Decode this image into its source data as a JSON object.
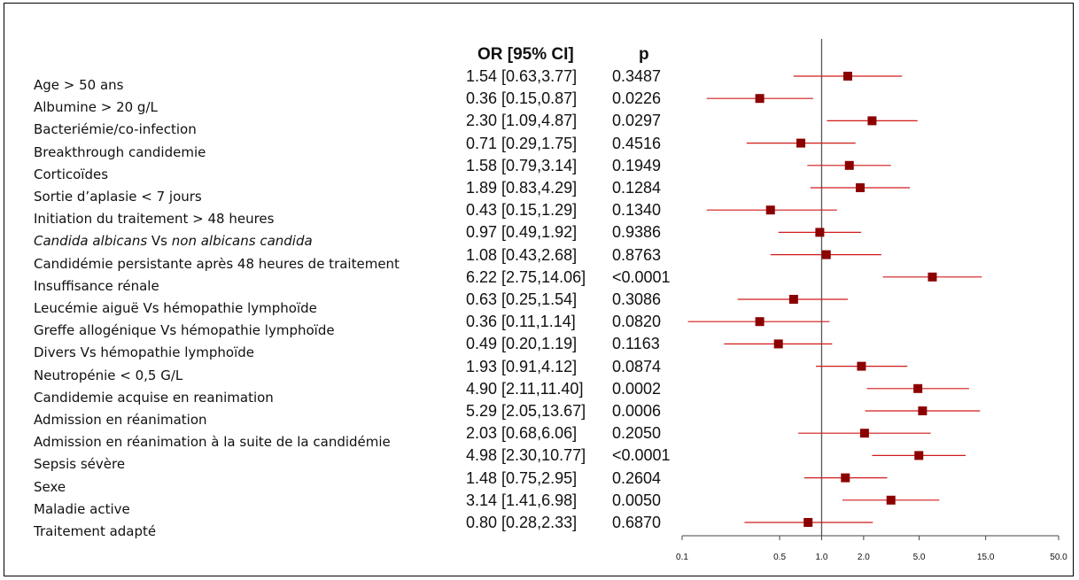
{
  "header": {
    "or_label": "OR [95% CI]",
    "p_label": "p"
  },
  "chart_data": {
    "type": "forest",
    "title": "",
    "x_scale": "log",
    "xlim": [
      0.1,
      50.0
    ],
    "x_ticks": [
      0.1,
      0.5,
      1.0,
      2.0,
      5.0,
      15.0,
      50.0
    ],
    "x_tick_labels": [
      "0.1",
      "0.5",
      "1.0",
      "2.0",
      "5.0",
      "15.0",
      "50.0"
    ],
    "reference_line": 1.0,
    "marker_color": "#8b0000",
    "line_color": "#d21a1a",
    "rows": [
      {
        "label": "Age > 50 ans",
        "or_text": "1.54 [0.63,3.77]",
        "p": "0.3487",
        "or": 1.54,
        "lo": 0.63,
        "hi": 3.77
      },
      {
        "label": "Albumine > 20 g/L",
        "or_text": "0.36 [0.15,0.87]",
        "p": "0.0226",
        "or": 0.36,
        "lo": 0.15,
        "hi": 0.87
      },
      {
        "label": "Bacteriémie/co-infection",
        "or_text": "2.30 [1.09,4.87]",
        "p": "0.0297",
        "or": 2.3,
        "lo": 1.09,
        "hi": 4.87
      },
      {
        "label": "Breakthrough candidemie",
        "or_text": "0.71 [0.29,1.75]",
        "p": "0.4516",
        "or": 0.71,
        "lo": 0.29,
        "hi": 1.75
      },
      {
        "label": "Corticoïdes",
        "or_text": "1.58 [0.79,3.14]",
        "p": "0.1949",
        "or": 1.58,
        "lo": 0.79,
        "hi": 3.14
      },
      {
        "label": "Sortie d’aplasie < 7 jours",
        "or_text": "1.89 [0.83,4.29]",
        "p": "0.1284",
        "or": 1.89,
        "lo": 0.83,
        "hi": 4.29
      },
      {
        "label": "Initiation du traitement > 48 heures",
        "or_text": "0.43 [0.15,1.29]",
        "p": "0.1340",
        "or": 0.43,
        "lo": 0.15,
        "hi": 1.29
      },
      {
        "label_italic": "Candida albicans",
        "label_mid": " Vs ",
        "label_italic2": "non albicans candida",
        "or_text": "0.97 [0.49,1.92]",
        "p": "0.9386",
        "or": 0.97,
        "lo": 0.49,
        "hi": 1.92
      },
      {
        "label": "Candidémie persistante après 48 heures de traitement",
        "or_text": "1.08 [0.43,2.68]",
        "p": "0.8763",
        "or": 1.08,
        "lo": 0.43,
        "hi": 2.68
      },
      {
        "label": "Insuffisance rénale",
        "or_text": "6.22 [2.75,14.06]",
        "p": "<0.0001",
        "or": 6.22,
        "lo": 2.75,
        "hi": 14.06
      },
      {
        "label": "Leucémie aiguë Vs hémopathie lymphoïde",
        "or_text": "0.63 [0.25,1.54]",
        "p": "0.3086",
        "or": 0.63,
        "lo": 0.25,
        "hi": 1.54
      },
      {
        "label": "Greffe allogénique Vs hémopathie lymphoïde",
        "or_text": "0.36 [0.11,1.14]",
        "p": "0.0820",
        "or": 0.36,
        "lo": 0.11,
        "hi": 1.14
      },
      {
        "label": "Divers Vs hémopathie lymphoïde",
        "or_text": "0.49 [0.20,1.19]",
        "p": "0.1163",
        "or": 0.49,
        "lo": 0.2,
        "hi": 1.19
      },
      {
        "label": "Neutropénie < 0,5 G/L",
        "or_text": "1.93 [0.91,4.12]",
        "p": "0.0874",
        "or": 1.93,
        "lo": 0.91,
        "hi": 4.12
      },
      {
        "label": "Candidemie acquise en reanimation",
        "or_text": "4.90 [2.11,11.40]",
        "p": "0.0002",
        "or": 4.9,
        "lo": 2.11,
        "hi": 11.4
      },
      {
        "label": "Admission en réanimation",
        "or_text": "5.29 [2.05,13.67]",
        "p": "0.0006",
        "or": 5.29,
        "lo": 2.05,
        "hi": 13.67
      },
      {
        "label": "Admission en réanimation à la suite de la candidémie",
        "or_text": "2.03 [0.68,6.06]",
        "p": "0.2050",
        "or": 2.03,
        "lo": 0.68,
        "hi": 6.06
      },
      {
        "label": "Sepsis sévère",
        "or_text": "4.98 [2.30,10.77]",
        "p": "<0.0001",
        "or": 4.98,
        "lo": 2.3,
        "hi": 10.77
      },
      {
        "label": "Sexe",
        "or_text": "1.48 [0.75,2.95]",
        "p": "0.2604",
        "or": 1.48,
        "lo": 0.75,
        "hi": 2.95
      },
      {
        "label": "Maladie active",
        "or_text": "3.14 [1.41,6.98]",
        "p": "0.0050",
        "or": 3.14,
        "lo": 1.41,
        "hi": 6.98
      },
      {
        "label": "Traitement adapté",
        "or_text": "0.80 [0.28,2.33]",
        "p": "0.6870",
        "or": 0.8,
        "lo": 0.28,
        "hi": 2.33
      }
    ]
  }
}
